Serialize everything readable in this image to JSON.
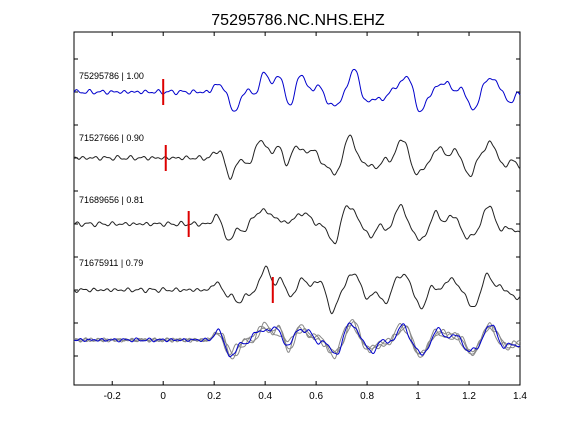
{
  "chart_data": {
    "type": "line",
    "title": "75295786.NC.NHS.EHZ",
    "xlabel": "",
    "ylabel": "",
    "xlim": [
      -0.35,
      1.4
    ],
    "xticks": [
      -0.2,
      0,
      0.2,
      0.4,
      0.6,
      0.8,
      1.0,
      1.2,
      1.4
    ],
    "xtick_labels": [
      "-0.2",
      "0",
      "0.2",
      "0.4",
      "0.6",
      "0.8",
      "1",
      "1.2",
      "1.4"
    ],
    "grid": false,
    "series": [
      {
        "name": "75295786 | 1.00",
        "color": "#0000cc",
        "pick_time": 0.0,
        "row": 0
      },
      {
        "name": "71527666 | 0.90",
        "color": "#222222",
        "pick_time": 0.01,
        "row": 1
      },
      {
        "name": "71689656 | 0.81",
        "color": "#222222",
        "pick_time": 0.1,
        "row": 2
      },
      {
        "name": "71675911 | 0.79",
        "color": "#222222",
        "pick_time": 0.43,
        "row": 3
      }
    ],
    "pick_color": "#dd0000",
    "overlay": {
      "colors": [
        "#888888",
        "#888888",
        "#888888",
        "#0000cc"
      ]
    }
  }
}
